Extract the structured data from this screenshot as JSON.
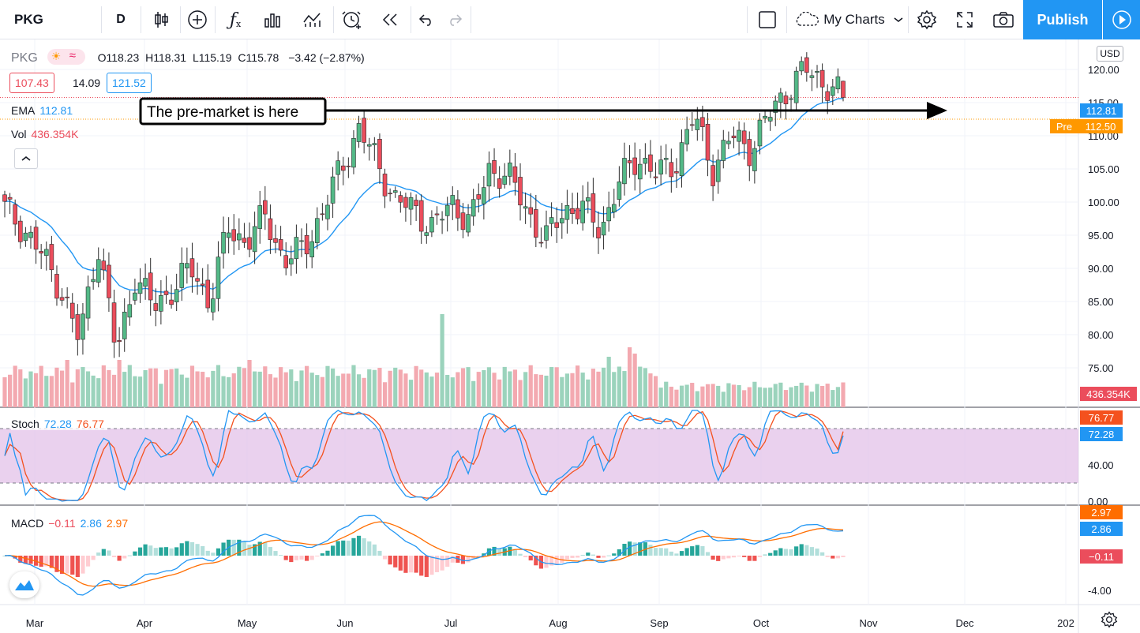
{
  "toolbar": {
    "symbol": "PKG",
    "interval": "D",
    "my_charts_label": "My Charts",
    "publish_label": "Publish"
  },
  "legend": {
    "symbol": "PKG",
    "open_label": "O",
    "open": "118.23",
    "high_label": "H",
    "high": "118.31",
    "low_label": "L",
    "low": "115.19",
    "close_label": "C",
    "close": "115.78",
    "change": "−3.42 (−2.87%)",
    "bid": "107.43",
    "spread": "14.09",
    "ask": "121.52",
    "ema_label": "EMA",
    "ema_value": "112.81",
    "vol_label": "Vol",
    "vol_value": "436.354K",
    "stoch_label": "Stoch",
    "stoch_k": "72.28",
    "stoch_d": "76.77",
    "macd_label": "MACD",
    "macd_hist": "−0.11",
    "macd_line": "2.86",
    "macd_signal": "2.97"
  },
  "annotation": {
    "text": "The pre-market is here"
  },
  "price_scale": {
    "currency": "USD",
    "ema_tag": "112.81",
    "pre_label": "Pre",
    "pre_tag": "112.50",
    "vol_tag": "436.354K",
    "stoch_tag_d": "76.77",
    "stoch_tag_k": "72.28",
    "macd_tag_signal": "2.97",
    "macd_tag_line": "2.86",
    "macd_tag_hist": "−0.11"
  },
  "colors": {
    "up": "#53b987",
    "down": "#eb4d5c",
    "vol_up": "#9bd3bc",
    "vol_down": "#f3a9b0",
    "ema": "#2196f3",
    "stoch_k": "#2196f3",
    "stoch_d": "#f4511e",
    "macd_line": "#2196f3",
    "macd_signal": "#ff6d00",
    "stoch_band": "#e1bee7",
    "publish": "#2196f3"
  },
  "chart_data": {
    "type": "candlestick",
    "symbol": "PKG",
    "interval": "D",
    "x_ticks": [
      "Mar",
      "Apr",
      "May",
      "Jun",
      "Jul",
      "Aug",
      "Sep",
      "Oct",
      "Nov",
      "Dec",
      "202"
    ],
    "price_ticks": [
      "120.00",
      "115.00",
      "110.00",
      "105.00",
      "100.00",
      "95.00",
      "90.00",
      "85.00",
      "80.00",
      "75.00"
    ],
    "price_range": [
      72,
      122
    ],
    "stoch_ticks": [
      "40.00",
      "0.00"
    ],
    "stoch_band": [
      20,
      80
    ],
    "macd_ticks": [
      "-4.00"
    ],
    "close_keyframes": [
      {
        "date": "Feb 24",
        "close": 99
      },
      {
        "date": "Feb 28",
        "close": 96
      },
      {
        "date": "Mar 5",
        "close": 92
      },
      {
        "date": "Mar 12",
        "close": 87
      },
      {
        "date": "Mar 16",
        "close": 79
      },
      {
        "date": "Mar 19",
        "close": 94
      },
      {
        "date": "Mar 23",
        "close": 77
      },
      {
        "date": "Mar 27",
        "close": 89
      },
      {
        "date": "Apr 3",
        "close": 84
      },
      {
        "date": "Apr 9",
        "close": 87
      },
      {
        "date": "Apr 16",
        "close": 90
      },
      {
        "date": "Apr 23",
        "close": 85
      },
      {
        "date": "Apr 29",
        "close": 96
      },
      {
        "date": "May 6",
        "close": 94
      },
      {
        "date": "May 12",
        "close": 98
      },
      {
        "date": "May 15",
        "close": 91
      },
      {
        "date": "May 22",
        "close": 93
      },
      {
        "date": "May 29",
        "close": 98
      },
      {
        "date": "Jun 3",
        "close": 105
      },
      {
        "date": "Jun 8",
        "close": 111
      },
      {
        "date": "Jun 11",
        "close": 106
      },
      {
        "date": "Jun 15",
        "close": 100
      },
      {
        "date": "Jun 22",
        "close": 99
      },
      {
        "date": "Jun 26",
        "close": 96
      },
      {
        "date": "Jul 2",
        "close": 100
      },
      {
        "date": "Jul 8",
        "close": 97
      },
      {
        "date": "Jul 14",
        "close": 105
      },
      {
        "date": "Jul 21",
        "close": 104
      },
      {
        "date": "Jul 28",
        "close": 99
      },
      {
        "date": "Aug 4",
        "close": 94
      },
      {
        "date": "Aug 10",
        "close": 99
      },
      {
        "date": "Aug 17",
        "close": 99
      },
      {
        "date": "Aug 21",
        "close": 96
      },
      {
        "date": "Aug 28",
        "close": 103
      },
      {
        "date": "Sep 3",
        "close": 107
      },
      {
        "date": "Sep 9",
        "close": 104
      },
      {
        "date": "Sep 14",
        "close": 106
      },
      {
        "date": "Sep 17",
        "close": 113
      },
      {
        "date": "Sep 22",
        "close": 105
      },
      {
        "date": "Sep 25",
        "close": 110
      },
      {
        "date": "Oct 1",
        "close": 108
      },
      {
        "date": "Oct 6",
        "close": 113
      },
      {
        "date": "Oct 12",
        "close": 117
      },
      {
        "date": "Oct 16",
        "close": 120
      },
      {
        "date": "Oct 20",
        "close": 118
      },
      {
        "date": "Oct 22",
        "close": 115.78
      }
    ],
    "last_bar": {
      "open": 118.23,
      "high": 118.31,
      "low": 115.19,
      "close": 115.78,
      "change": -3.42,
      "change_pct": -2.87
    },
    "ema": 112.81,
    "pre_market": 112.5,
    "volume_last": "436.354K",
    "stoch": {
      "k": 72.28,
      "d": 76.77
    },
    "macd": {
      "histogram": -0.11,
      "macd": 2.86,
      "signal": 2.97
    }
  }
}
